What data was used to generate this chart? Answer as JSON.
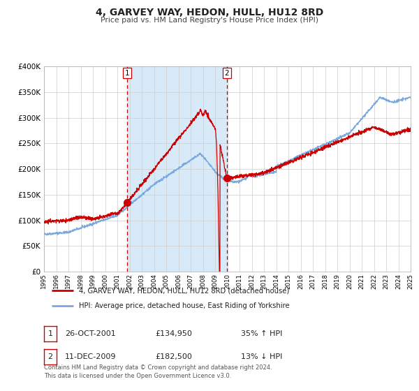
{
  "title": "4, GARVEY WAY, HEDON, HULL, HU12 8RD",
  "subtitle": "Price paid vs. HM Land Registry's House Price Index (HPI)",
  "legend_line1": "4, GARVEY WAY, HEDON, HULL, HU12 8RD (detached house)",
  "legend_line2": "HPI: Average price, detached house, East Riding of Yorkshire",
  "transaction1_date": "26-OCT-2001",
  "transaction1_price": "£134,950",
  "transaction1_hpi": "35% ↑ HPI",
  "transaction1_year": 2001.82,
  "transaction1_value": 134950,
  "transaction2_date": "11-DEC-2009",
  "transaction2_price": "£182,500",
  "transaction2_hpi": "13% ↓ HPI",
  "transaction2_year": 2009.95,
  "transaction2_value": 182500,
  "red_line_color": "#cc0000",
  "blue_line_color": "#7aaadd",
  "shade_color": "#d8eaf7",
  "vline_color": "#cc0000",
  "background_color": "#ffffff",
  "grid_color": "#cccccc",
  "footer": "Contains HM Land Registry data © Crown copyright and database right 2024.\nThis data is licensed under the Open Government Licence v3.0.",
  "ylim": [
    0,
    400000
  ],
  "xlim_start": 1995,
  "xlim_end": 2025
}
